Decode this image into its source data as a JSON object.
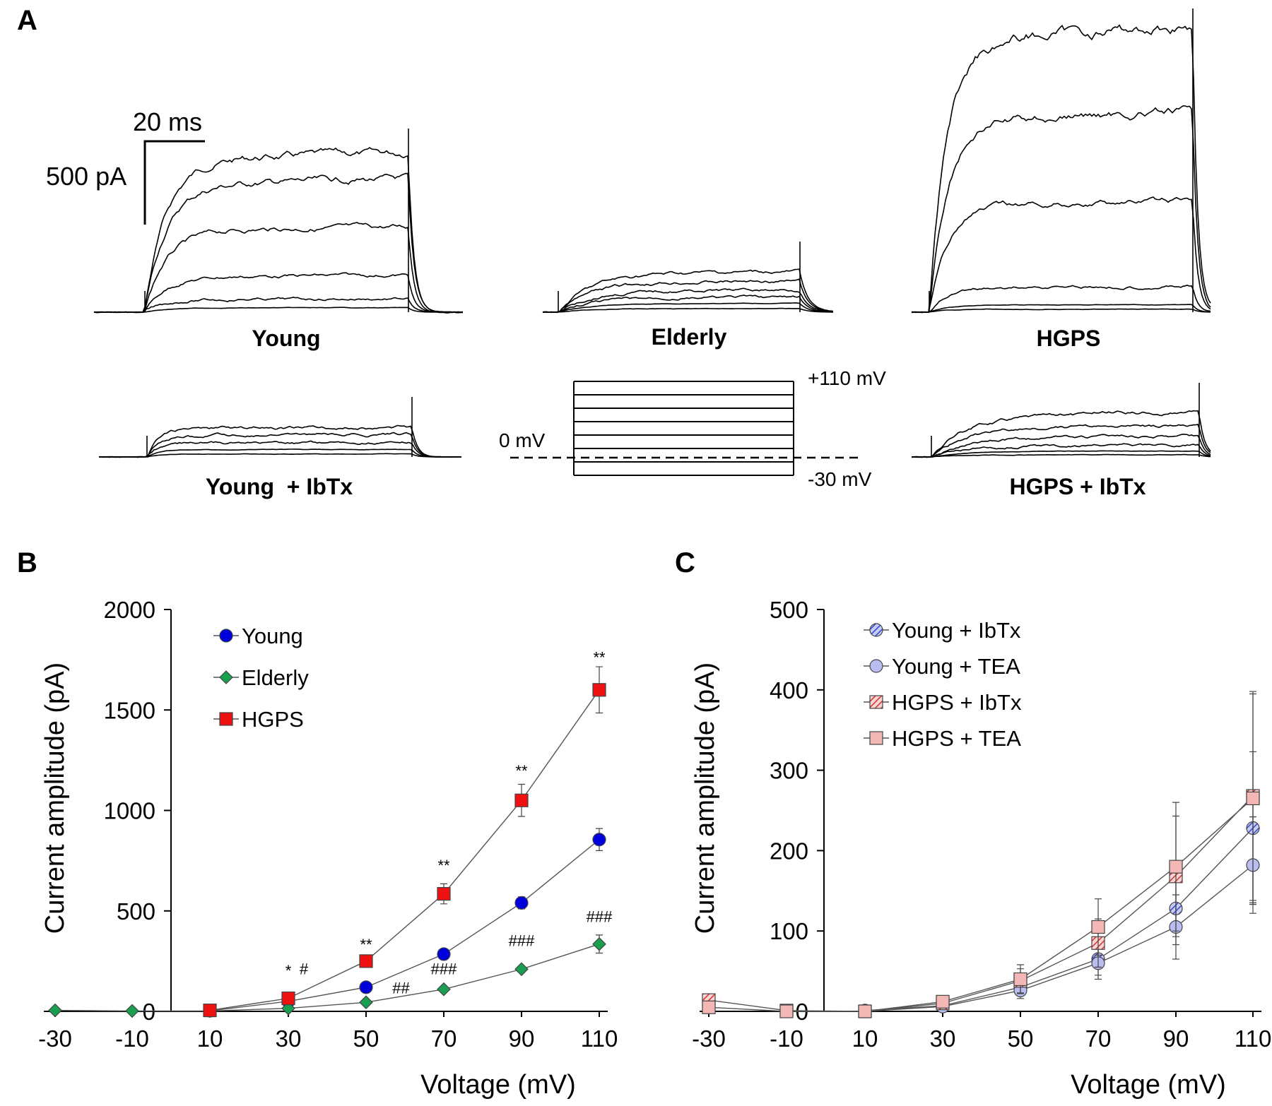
{
  "panel_a": {
    "label": "A",
    "scale_time": "20 ms",
    "scale_current": "500 pA",
    "traces": [
      {
        "label": "Young"
      },
      {
        "label": "Elderly"
      },
      {
        "label": "HGPS"
      },
      {
        "label": "Young  + IbTx"
      },
      {
        "label": "HGPS + IbTx"
      }
    ],
    "protocol": {
      "top": "+110 mV",
      "zero": "0 mV",
      "bottom": "-30 mV"
    }
  },
  "chart_data": [
    {
      "panel": "B",
      "type": "line",
      "xlabel": "Voltage (mV)",
      "ylabel": "Current amplitude (pA)",
      "x": [
        -30,
        -10,
        10,
        30,
        50,
        70,
        90,
        110
      ],
      "xticks": [
        "-30",
        "-10",
        "10",
        "30",
        "50",
        "70",
        "90",
        "110"
      ],
      "ylim": [
        0,
        2000
      ],
      "yticks": [
        "0",
        "500",
        "1000",
        "1500",
        "2000"
      ],
      "legend_position": "top-left",
      "series": [
        {
          "name": "Young",
          "color": "#0000dd",
          "marker": "circle",
          "points": [
            [
              10,
              3
            ],
            [
              30,
              50
            ],
            [
              50,
              120
            ],
            [
              70,
              285
            ],
            [
              90,
              540
            ],
            [
              110,
              855
            ]
          ],
          "err": [
            0,
            8,
            15,
            20,
            30,
            55
          ]
        },
        {
          "name": "Elderly",
          "color": "#1a9f50",
          "marker": "diamond",
          "points": [
            [
              -30,
              5
            ],
            [
              -10,
              2
            ],
            [
              10,
              2
            ],
            [
              30,
              15
            ],
            [
              50,
              45
            ],
            [
              70,
              110
            ],
            [
              90,
              210
            ],
            [
              110,
              335
            ]
          ],
          "err": [
            0,
            0,
            0,
            5,
            8,
            12,
            15,
            45
          ]
        },
        {
          "name": "HGPS",
          "color": "#ee1111",
          "marker": "square",
          "points": [
            [
              10,
              5
            ],
            [
              30,
              65
            ],
            [
              50,
              250
            ],
            [
              70,
              585
            ],
            [
              90,
              1050
            ],
            [
              110,
              1600
            ]
          ],
          "err": [
            0,
            10,
            20,
            50,
            80,
            115
          ]
        }
      ],
      "annotations": [
        {
          "x": 30,
          "y": 175,
          "text": "*"
        },
        {
          "x": 34,
          "y": 185,
          "text": "#"
        },
        {
          "x": 50,
          "y": 305,
          "text": "**"
        },
        {
          "x": 59,
          "y": 90,
          "text": "##"
        },
        {
          "x": 70,
          "y": 700,
          "text": "**"
        },
        {
          "x": 70,
          "y": 185,
          "text": "###"
        },
        {
          "x": 90,
          "y": 1170,
          "text": "**"
        },
        {
          "x": 90,
          "y": 325,
          "text": "###"
        },
        {
          "x": 110,
          "y": 1735,
          "text": "**"
        },
        {
          "x": 110,
          "y": 445,
          "text": "###"
        }
      ]
    },
    {
      "panel": "C",
      "type": "line",
      "xlabel": "Voltage (mV)",
      "ylabel": "Current amplitude (pA)",
      "x": [
        -30,
        -10,
        10,
        30,
        50,
        70,
        90,
        110
      ],
      "xticks": [
        "-30",
        "-10",
        "10",
        "30",
        "50",
        "70",
        "90",
        "110"
      ],
      "ylim": [
        0,
        500
      ],
      "yticks": [
        "0",
        "100",
        "200",
        "300",
        "400",
        "500"
      ],
      "legend_position": "top-left",
      "series": [
        {
          "name": "Young + IbTx",
          "color": "#5b6ee0",
          "marker": "circle-hatched",
          "points": [
            [
              10,
              1
            ],
            [
              30,
              7
            ],
            [
              50,
              30
            ],
            [
              70,
              65
            ],
            [
              90,
              128
            ],
            [
              110,
              228
            ]
          ],
          "err": [
            0,
            3,
            10,
            20,
            45,
            95
          ]
        },
        {
          "name": "Young + TEA",
          "color": "#b9bdf0",
          "marker": "circle",
          "points": [
            [
              10,
              0
            ],
            [
              30,
              6
            ],
            [
              50,
              26
            ],
            [
              70,
              60
            ],
            [
              90,
              105
            ],
            [
              110,
              182
            ]
          ],
          "err": [
            0,
            3,
            10,
            20,
            40,
            60
          ]
        },
        {
          "name": "HGPS + IbTx",
          "color": "#e0514d",
          "marker": "square-hatched",
          "points": [
            [
              -30,
              14
            ],
            [
              -10,
              1
            ],
            [
              10,
              0
            ],
            [
              30,
              10
            ],
            [
              50,
              38
            ],
            [
              70,
              85
            ],
            [
              90,
              168
            ],
            [
              110,
              268
            ]
          ],
          "err": [
            0,
            0,
            0,
            5,
            15,
            30,
            75,
            130
          ]
        },
        {
          "name": "HGPS + TEA",
          "color": "#f3b7b5",
          "marker": "square",
          "points": [
            [
              -30,
              5
            ],
            [
              -10,
              0
            ],
            [
              10,
              0
            ],
            [
              30,
              12
            ],
            [
              50,
              40
            ],
            [
              70,
              105
            ],
            [
              90,
              180
            ],
            [
              110,
              265
            ]
          ],
          "err": [
            0,
            0,
            0,
            6,
            18,
            35,
            80,
            130
          ]
        }
      ],
      "annotations": []
    }
  ]
}
